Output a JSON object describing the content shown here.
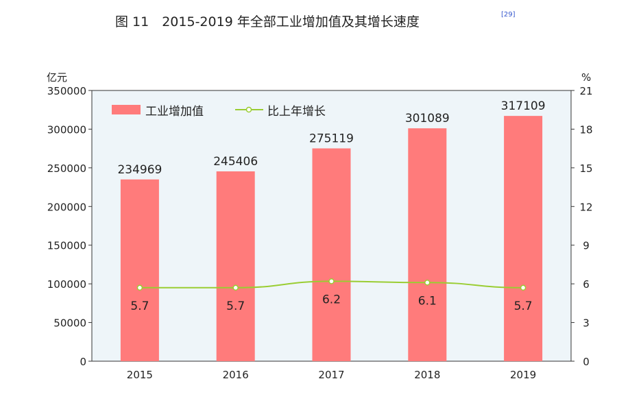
{
  "chart_data": {
    "type": "bar+line",
    "title": "图 11　2015-2019 年全部工业增加值及其增长速度",
    "title_note": "[29]",
    "categories": [
      "2015",
      "2016",
      "2017",
      "2018",
      "2019"
    ],
    "series": [
      {
        "name": "工业增加值",
        "type": "bar",
        "axis": "left",
        "color": "#ff7b7b",
        "values": [
          234969,
          245406,
          275119,
          301089,
          317109
        ]
      },
      {
        "name": "比上年增长",
        "type": "line",
        "axis": "right",
        "color": "#9acd32",
        "values": [
          5.7,
          5.7,
          6.2,
          6.1,
          5.7
        ]
      }
    ],
    "y_left": {
      "unit": "亿元",
      "lim": [
        0,
        350000
      ],
      "ticks": [
        0,
        50000,
        100000,
        150000,
        200000,
        250000,
        300000,
        350000
      ]
    },
    "y_right": {
      "unit": "%",
      "lim": [
        0,
        21
      ],
      "ticks": [
        0,
        3,
        6,
        9,
        12,
        15,
        18,
        21
      ]
    },
    "legend": "top-left",
    "grid": false,
    "plot_background": "#eef5f9"
  }
}
